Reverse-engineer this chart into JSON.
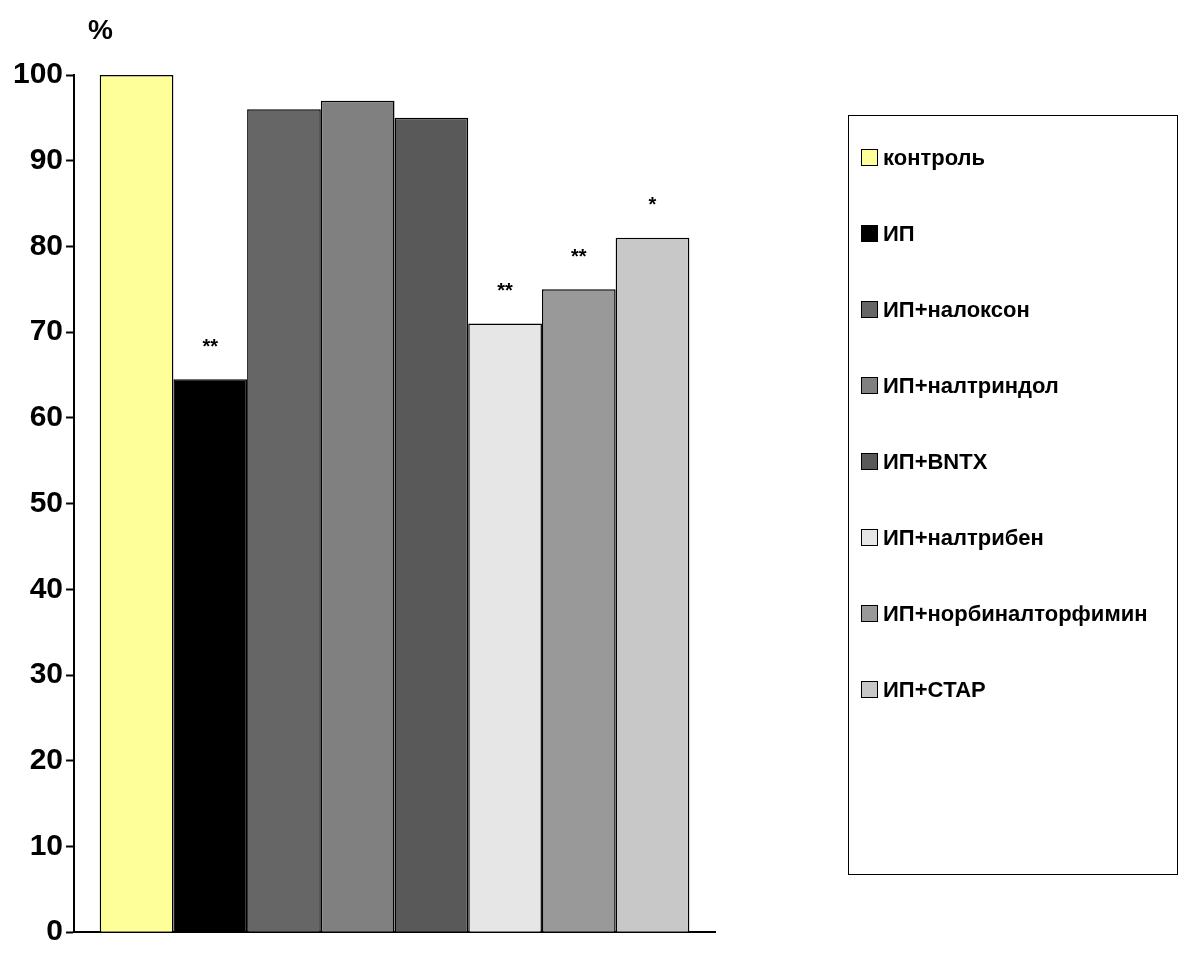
{
  "chart_data": {
    "type": "bar",
    "ylabel": "%",
    "categories": [
      null
    ],
    "ylim": [
      0,
      100
    ],
    "yticks": [
      0,
      10,
      20,
      30,
      40,
      50,
      60,
      70,
      80,
      90,
      100
    ],
    "grid": false,
    "legend": "right",
    "series": [
      {
        "name": "контроль",
        "color": "#ffff99",
        "values": [
          100
        ]
      },
      {
        "name": "ИП",
        "color": "#000000",
        "values": [
          64.5
        ],
        "value_labels": [
          "**"
        ]
      },
      {
        "name": "ИП+налоксон",
        "color": "#666666",
        "values": [
          96
        ]
      },
      {
        "name": "ИП+налтриндол",
        "color": "#808080",
        "values": [
          97
        ]
      },
      {
        "name": "ИП+BNTX",
        "color": "#595959",
        "values": [
          95
        ]
      },
      {
        "name": "ИП+налтрибен",
        "color": "#e6e6e6",
        "values": [
          71
        ],
        "value_labels": [
          "**"
        ]
      },
      {
        "name": "ИП+норбиналторфимин",
        "color": "#999999",
        "values": [
          75
        ],
        "value_labels": [
          "**"
        ]
      },
      {
        "name": "ИП+CTAP",
        "color": "#c8c8c8",
        "values": [
          81
        ],
        "value_labels": [
          "*"
        ]
      }
    ]
  }
}
